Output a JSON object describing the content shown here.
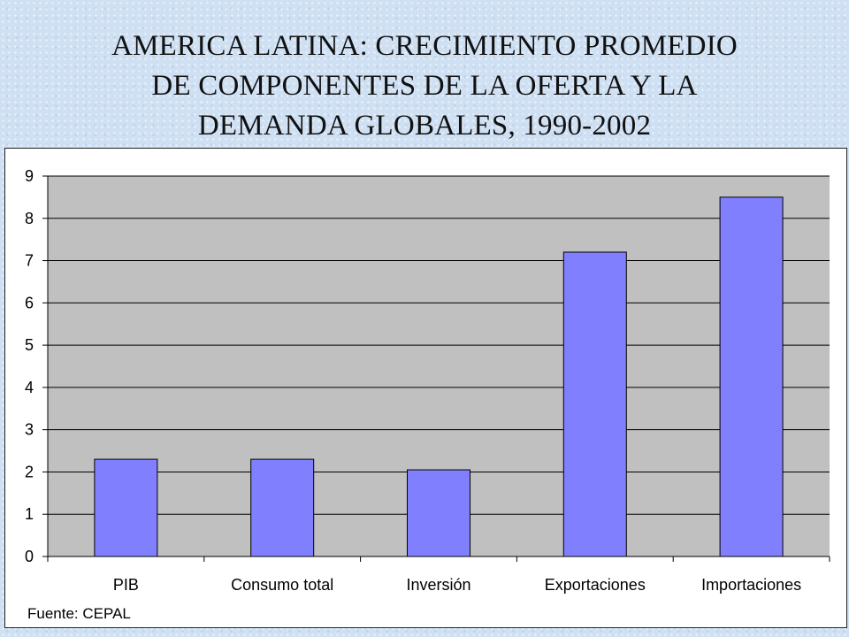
{
  "slide": {
    "title_lines": [
      "AMERICA LATINA: CRECIMIENTO PROMEDIO",
      "DE COMPONENTES DE LA OFERTA Y LA",
      "DEMANDA GLOBALES, 1990-2002"
    ],
    "source": "Fuente: CEPAL"
  },
  "colors": {
    "bar": "#8080ff",
    "plot_background": "#c0c0c0",
    "chart_background": "#ffffff",
    "slide_background": "#cfe0f3"
  },
  "chart_data": {
    "type": "bar",
    "title": "AMERICA LATINA: CRECIMIENTO PROMEDIO DE COMPONENTES DE LA OFERTA Y LA DEMANDA GLOBALES, 1990-2002",
    "categories": [
      "PIB",
      "Consumo total",
      "Inversión",
      "Exportaciones",
      "Importaciones"
    ],
    "values": [
      2.3,
      2.3,
      2.05,
      7.2,
      8.5
    ],
    "xlabel": "",
    "ylabel": "",
    "ylim": [
      0,
      9
    ],
    "yticks": [
      0,
      1,
      2,
      3,
      4,
      5,
      6,
      7,
      8,
      9
    ],
    "grid": true,
    "legend": false
  }
}
